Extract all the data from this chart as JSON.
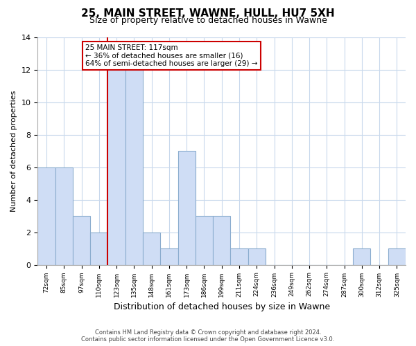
{
  "title": "25, MAIN STREET, WAWNE, HULL, HU7 5XH",
  "subtitle": "Size of property relative to detached houses in Wawne",
  "xlabel": "Distribution of detached houses by size in Wawne",
  "ylabel": "Number of detached properties",
  "bin_labels": [
    "72sqm",
    "85sqm",
    "97sqm",
    "110sqm",
    "123sqm",
    "135sqm",
    "148sqm",
    "161sqm",
    "173sqm",
    "186sqm",
    "199sqm",
    "211sqm",
    "224sqm",
    "236sqm",
    "249sqm",
    "262sqm",
    "274sqm",
    "287sqm",
    "300sqm",
    "312sqm",
    "325sqm"
  ],
  "bar_heights": [
    6,
    6,
    3,
    2,
    12,
    12,
    2,
    1,
    7,
    3,
    3,
    1,
    1,
    0,
    0,
    0,
    0,
    0,
    1,
    0,
    1
  ],
  "bar_color": "#cfddf5",
  "bar_edge_color": "#8aacce",
  "property_line_x": 4,
  "property_line_label": "25 MAIN STREET: 117sqm",
  "annotation_smaller": "← 36% of detached houses are smaller (16)",
  "annotation_larger": "64% of semi-detached houses are larger (29) →",
  "property_line_color": "#cc0000",
  "ylim": [
    0,
    14
  ],
  "yticks": [
    0,
    2,
    4,
    6,
    8,
    10,
    12,
    14
  ],
  "footer_line1": "Contains HM Land Registry data © Crown copyright and database right 2024.",
  "footer_line2": "Contains public sector information licensed under the Open Government Licence v3.0.",
  "title_fontsize": 11,
  "subtitle_fontsize": 9
}
